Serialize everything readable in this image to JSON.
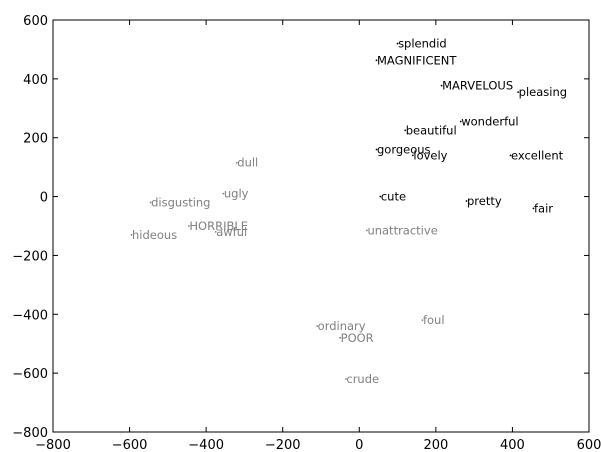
{
  "chart_data": {
    "type": "scatter",
    "title": "",
    "xlabel": "",
    "ylabel": "",
    "xlim": [
      -800,
      600
    ],
    "ylim": [
      -800,
      600
    ],
    "xticks": [
      -800,
      -600,
      -400,
      -200,
      0,
      200,
      400,
      600
    ],
    "yticks": [
      600,
      400,
      200,
      0,
      -200,
      -400,
      -600,
      -800
    ],
    "xtick_labels": [
      "−800",
      "−600",
      "−400",
      "−200",
      "0",
      "200",
      "400",
      "600"
    ],
    "ytick_labels": [
      "600",
      "400",
      "200",
      "0",
      "−200",
      "−400",
      "−600",
      "−800"
    ],
    "grid": false,
    "colors": {
      "positive": "#000000",
      "negative": "#808080"
    },
    "series": [
      {
        "color_key": "positive",
        "points": [
          {
            "label": "splendid",
            "x": 100,
            "y": 520
          },
          {
            "label": "MAGNIFICENT",
            "x": 45,
            "y": 463
          },
          {
            "label": "MARVELOUS",
            "x": 215,
            "y": 377
          },
          {
            "label": "pleasing",
            "x": 415,
            "y": 355
          },
          {
            "label": "wonderful",
            "x": 265,
            "y": 255
          },
          {
            "label": "beautiful",
            "x": 120,
            "y": 225
          },
          {
            "label": "gorgeous",
            "x": 45,
            "y": 160
          },
          {
            "label": "lovely",
            "x": 140,
            "y": 140
          },
          {
            "label": "excellent",
            "x": 395,
            "y": 140
          },
          {
            "label": "cute",
            "x": 55,
            "y": 0
          },
          {
            "label": "pretty",
            "x": 280,
            "y": -15
          },
          {
            "label": "fair",
            "x": 455,
            "y": -40
          }
        ]
      },
      {
        "color_key": "negative",
        "points": [
          {
            "label": "dull",
            "x": -320,
            "y": 115
          },
          {
            "label": "ugly",
            "x": -355,
            "y": 10
          },
          {
            "label": "disgusting",
            "x": -545,
            "y": -20
          },
          {
            "label": "HORRIBLE",
            "x": -445,
            "y": -100
          },
          {
            "label": "awful",
            "x": -375,
            "y": -120
          },
          {
            "label": "hideous",
            "x": -595,
            "y": -130
          },
          {
            "label": "unattractive",
            "x": 20,
            "y": -115
          },
          {
            "label": "foul",
            "x": 165,
            "y": -420
          },
          {
            "label": "ordinary",
            "x": -110,
            "y": -440
          },
          {
            "label": "POOR",
            "x": -50,
            "y": -480
          },
          {
            "label": "crude",
            "x": -35,
            "y": -620
          }
        ]
      }
    ]
  }
}
